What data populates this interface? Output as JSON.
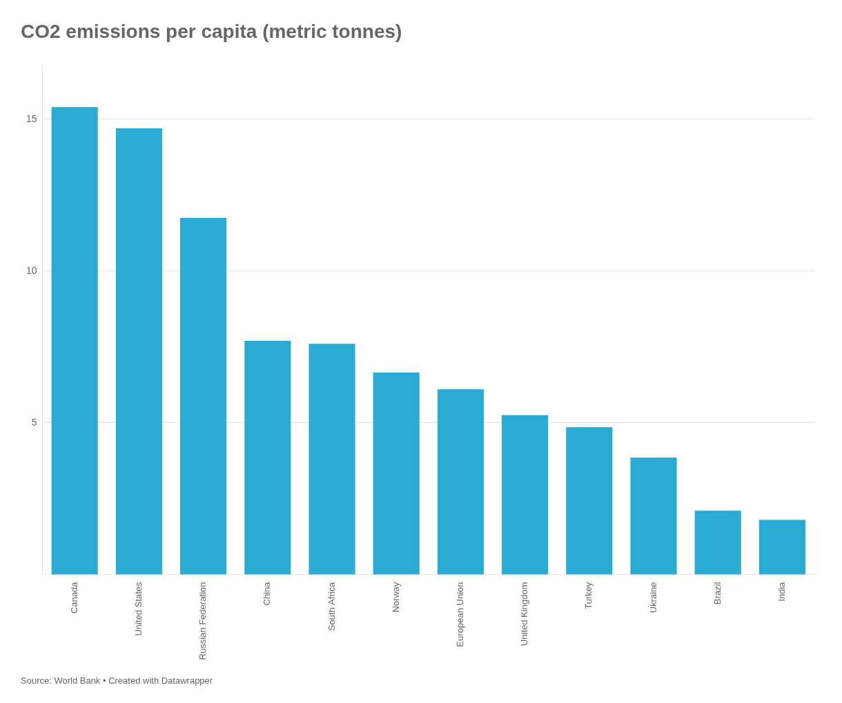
{
  "chart_data": {
    "type": "bar",
    "title": "CO2 emissions per capita (metric tonnes)",
    "annotations": [
      "Source: World Bank • Created with Datawrapper"
    ],
    "categories": [
      "Canada",
      "United States",
      "Russian Federation",
      "China",
      "South Africa",
      "Norway",
      "European Union",
      "United Kingdom",
      "Turkey",
      "Ukraine",
      "Brazil",
      "India"
    ],
    "values": [
      15.4,
      14.7,
      11.75,
      7.7,
      7.6,
      6.65,
      6.1,
      5.25,
      4.85,
      3.85,
      2.1,
      1.8
    ],
    "color": "#29ABD4",
    "ylim": [
      0,
      16.8
    ],
    "yticks": [
      5,
      10,
      15
    ],
    "grid": true
  }
}
